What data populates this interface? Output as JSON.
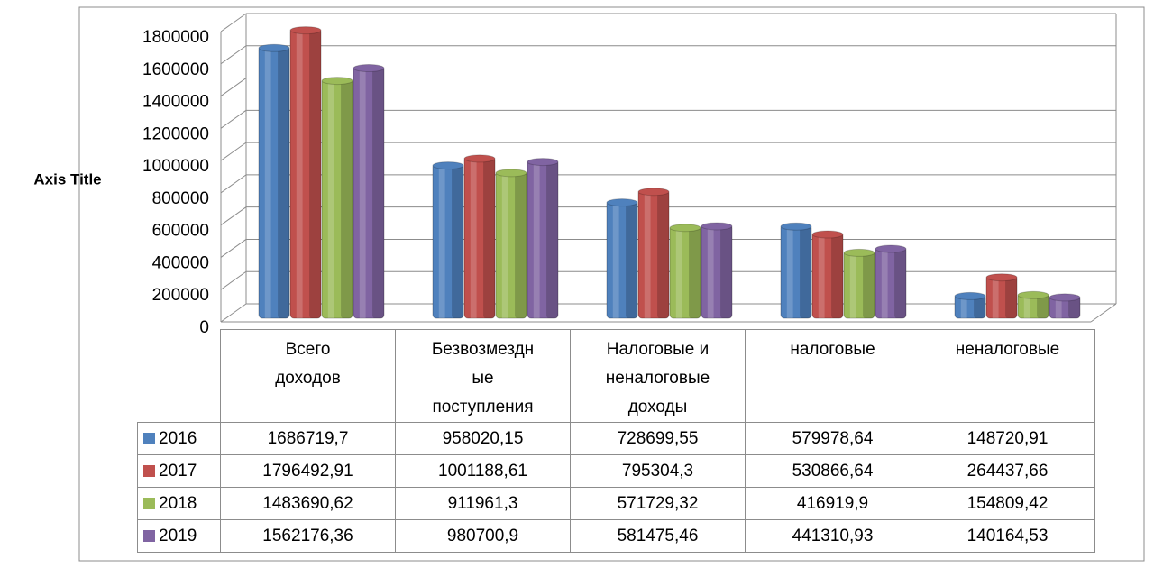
{
  "chart_data": {
    "type": "bar",
    "y_axis_title": "Axis Title",
    "categories": [
      "Всего доходов",
      "Безвозмездные поступления",
      "Налоговые и неналоговые доходы",
      "налоговые",
      "неналоговые"
    ],
    "series": [
      {
        "name": "2016",
        "color": "#4f81bd",
        "values": [
          1686719.7,
          958020.15,
          728699.55,
          579978.64,
          148720.91
        ],
        "value_labels": [
          "1686719,7",
          "958020,15",
          "728699,55",
          "579978,64",
          "148720,91"
        ]
      },
      {
        "name": "2017",
        "color": "#c0504d",
        "values": [
          1796492.91,
          1001188.61,
          795304.3,
          530866.64,
          264437.66
        ],
        "value_labels": [
          "1796492,91",
          "1001188,61",
          "795304,3",
          "530866,64",
          "264437,66"
        ]
      },
      {
        "name": "2018",
        "color": "#9bbb59",
        "values": [
          1483690.62,
          911961.3,
          571729.32,
          416919.9,
          154809.42
        ],
        "value_labels": [
          "1483690,62",
          "911961,3",
          "571729,32",
          "416919,9",
          "154809,42"
        ]
      },
      {
        "name": "2019",
        "color": "#8064a2",
        "values": [
          1562176.36,
          980700.9,
          581475.46,
          441310.93,
          140164.53
        ],
        "value_labels": [
          "1562176,36",
          "980700,9",
          "581475,46",
          "441310,93",
          "140164,53"
        ]
      }
    ],
    "ylim": [
      0,
      1800000
    ],
    "yticks": [
      0,
      200000,
      400000,
      600000,
      800000,
      1000000,
      1200000,
      1400000,
      1600000,
      1800000
    ],
    "grid": true
  }
}
